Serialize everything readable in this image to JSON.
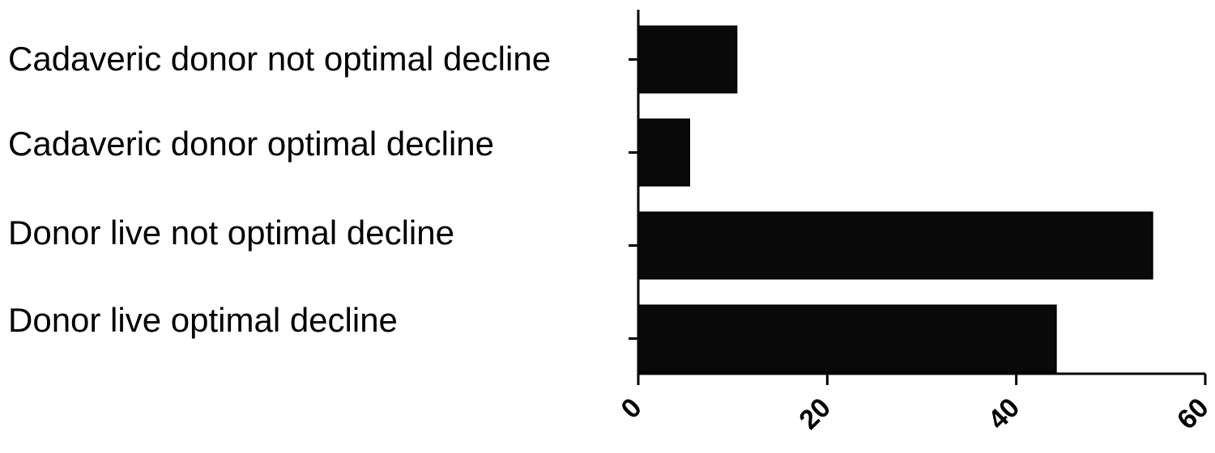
{
  "chart_data": {
    "type": "bar",
    "orientation": "horizontal",
    "title": "",
    "xlabel": "",
    "ylabel": "",
    "categories": [
      "Cadaveric donor not optimal decline",
      "Cadaveric donor optimal decline",
      "Donor live not optimal decline",
      "Donor live optimal decline"
    ],
    "values": [
      10.4,
      5.4,
      54.4,
      44.2
    ],
    "xlim": [
      0,
      60
    ],
    "xticks": [
      "0",
      "20",
      "40",
      "60"
    ],
    "tick_label_rotation": "-45",
    "grid": false,
    "bar_color": "#0a0a0a",
    "axis_color": "#000000"
  }
}
